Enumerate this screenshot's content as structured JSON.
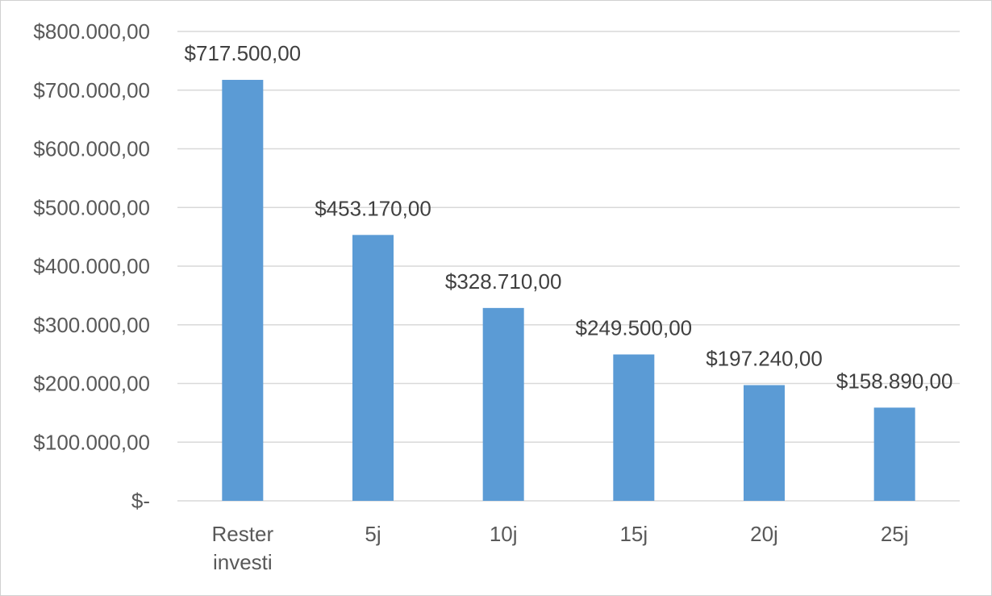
{
  "chart_data": {
    "type": "bar",
    "categories": [
      [
        "Rester",
        "investi"
      ],
      [
        "5j"
      ],
      [
        "10j"
      ],
      [
        "15j"
      ],
      [
        "20j"
      ],
      [
        "25j"
      ]
    ],
    "values": [
      717500,
      453170,
      328710,
      249500,
      197240,
      158890
    ],
    "data_labels": [
      "$717.500,00",
      "$453.170,00",
      "$328.710,00",
      "$249.500,00",
      "$197.240,00",
      "$158.890,00"
    ],
    "y_ticks": [
      0,
      100000,
      200000,
      300000,
      400000,
      500000,
      600000,
      700000,
      800000
    ],
    "y_tick_labels": [
      "$-",
      "$100.000,00",
      "$200.000,00",
      "$300.000,00",
      "$400.000,00",
      "$500.000,00",
      "$600.000,00",
      "$700.000,00",
      "$800.000,00"
    ],
    "ylim": [
      0,
      800000
    ],
    "grid": true,
    "bar_color": "#5b9bd5",
    "title": "",
    "xlabel": "",
    "ylabel": ""
  }
}
